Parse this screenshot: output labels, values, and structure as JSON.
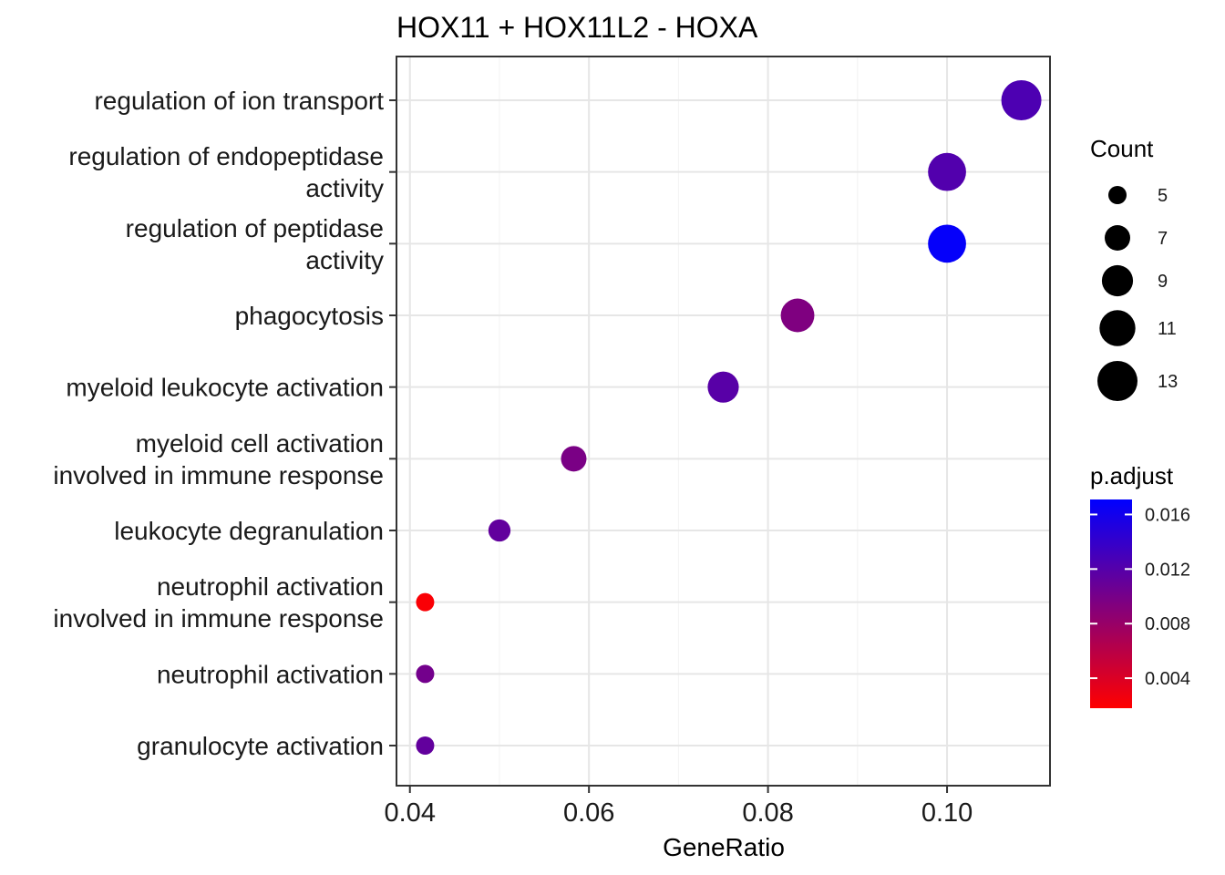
{
  "chart_data": {
    "type": "scatter",
    "title": "HOX11 + HOX11L2 - HOXA",
    "xlabel": "GeneRatio",
    "ylabel": "",
    "xlim": [
      0.0385,
      0.1115
    ],
    "xticks": [
      0.04,
      0.06,
      0.08,
      0.1
    ],
    "xtick_labels": [
      "0.04",
      "0.06",
      "0.08",
      "0.10"
    ],
    "grid": true,
    "categories": [
      {
        "label_lines": [
          "regulation of ion transport"
        ],
        "x": 0.1083,
        "count": 13,
        "p_adjust": 0.0125
      },
      {
        "label_lines": [
          "regulation of endopeptidase",
          "activity"
        ],
        "x": 0.1,
        "count": 12,
        "p_adjust": 0.0122
      },
      {
        "label_lines": [
          "regulation of peptidase",
          "activity"
        ],
        "x": 0.1,
        "count": 12,
        "p_adjust": 0.0168
      },
      {
        "label_lines": [
          "phagocytosis"
        ],
        "x": 0.0833,
        "count": 10,
        "p_adjust": 0.0095
      },
      {
        "label_lines": [
          "myeloid leukocyte activation"
        ],
        "x": 0.075,
        "count": 9,
        "p_adjust": 0.0118
      },
      {
        "label_lines": [
          "myeloid cell activation",
          "involved in immune response"
        ],
        "x": 0.0583,
        "count": 7,
        "p_adjust": 0.0098
      },
      {
        "label_lines": [
          "leukocyte degranulation"
        ],
        "x": 0.05,
        "count": 6,
        "p_adjust": 0.0112
      },
      {
        "label_lines": [
          "neutrophil activation",
          "involved in immune response"
        ],
        "x": 0.0417,
        "count": 5,
        "p_adjust": 0.0021
      },
      {
        "label_lines": [
          "neutrophil activation"
        ],
        "x": 0.0417,
        "count": 5,
        "p_adjust": 0.0102
      },
      {
        "label_lines": [
          "granulocyte activation"
        ],
        "x": 0.0417,
        "count": 5,
        "p_adjust": 0.0112
      }
    ],
    "size_legend": {
      "title": "Count",
      "values": [
        5,
        7,
        9,
        11,
        13
      ]
    },
    "color_legend": {
      "title": "p.adjust",
      "range": [
        0.0018,
        0.0171
      ],
      "ticks": [
        0.004,
        0.008,
        0.012,
        0.016
      ],
      "tick_labels": [
        "0.004",
        "0.008",
        "0.012",
        "0.016"
      ],
      "low_color": "#FF0000",
      "high_color": "#0000FF"
    },
    "legend_position": "right"
  }
}
